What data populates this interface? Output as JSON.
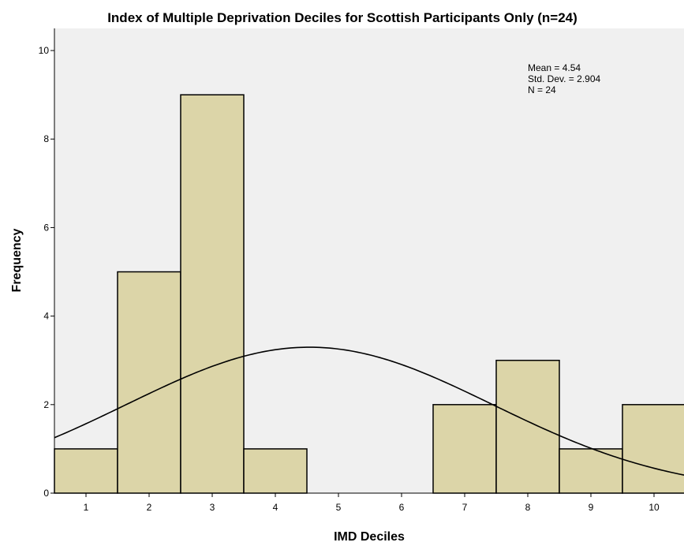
{
  "chart_data": {
    "type": "bar",
    "title": "Index of Multiple Deprivation Deciles for Scottish Participants Only (n=24)",
    "xlabel": "IMD Deciles",
    "ylabel": "Frequency",
    "categories": [
      "1",
      "2",
      "3",
      "4",
      "5",
      "6",
      "7",
      "8",
      "9",
      "10"
    ],
    "values": [
      1,
      5,
      9,
      1,
      0,
      0,
      2,
      3,
      1,
      2
    ],
    "y_ticks": [
      "0",
      "2",
      "4",
      "6",
      "8",
      "10"
    ],
    "ylim": [
      0,
      10.5
    ],
    "bar_color": "#dcd5a8",
    "plot_background": "#f0f0f0",
    "grid": false,
    "normal_curve": {
      "mean": 4.54,
      "std_dev": 2.904,
      "n": 24,
      "bin_width": 1
    },
    "stats": {
      "mean_label": "Mean = 4.54",
      "std_label": "Std. Dev. = 2.904",
      "n_label": "N = 24",
      "placement": "top-right"
    }
  }
}
